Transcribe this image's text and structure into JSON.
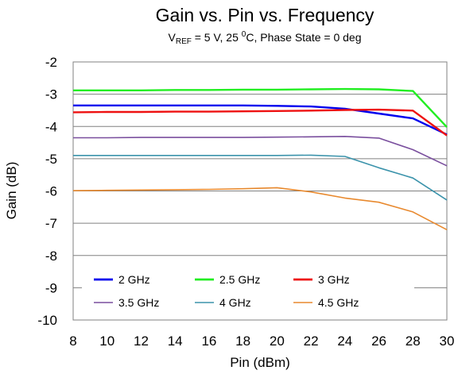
{
  "chart_data": {
    "type": "line",
    "title": "Gain vs. Pin vs. Frequency",
    "subtitle": {
      "prefix": "V",
      "sub": "REF",
      "middle": " = 5 V, 25 ",
      "sup": "0",
      "suffix": "C, Phase State = 0 deg"
    },
    "xlabel": "Pin (dBm)",
    "ylabel": "Gain (dB)",
    "xlim": [
      8,
      30
    ],
    "ylim": [
      -10,
      -2
    ],
    "xticks": [
      "8",
      "10",
      "12",
      "14",
      "16",
      "18",
      "20",
      "22",
      "24",
      "26",
      "28",
      "30"
    ],
    "yticks": [
      "-2",
      "-3",
      "-4",
      "-5",
      "-6",
      "-7",
      "-8",
      "-9",
      "-10"
    ],
    "grid": "horizontal",
    "legend_position": "bottom-inside",
    "x": [
      8,
      10,
      12,
      14,
      16,
      18,
      20,
      22,
      24,
      26,
      28,
      30
    ],
    "series": [
      {
        "name": "2 GHz",
        "color": "#0000ee",
        "values": [
          -3.35,
          -3.35,
          -3.35,
          -3.35,
          -3.35,
          -3.35,
          -3.36,
          -3.38,
          -3.45,
          -3.6,
          -3.75,
          -4.25
        ]
      },
      {
        "name": "2.5 GHz",
        "color": "#22ee22",
        "values": [
          -2.88,
          -2.88,
          -2.88,
          -2.87,
          -2.87,
          -2.86,
          -2.86,
          -2.85,
          -2.84,
          -2.85,
          -2.9,
          -4.02
        ]
      },
      {
        "name": "3 GHz",
        "color": "#ee1111",
        "values": [
          -3.56,
          -3.55,
          -3.55,
          -3.54,
          -3.54,
          -3.53,
          -3.52,
          -3.51,
          -3.49,
          -3.48,
          -3.51,
          -4.28
        ]
      },
      {
        "name": "3.5 GHz",
        "color": "#7a4f9e",
        "values": [
          -4.35,
          -4.35,
          -4.34,
          -4.34,
          -4.34,
          -4.34,
          -4.33,
          -4.32,
          -4.31,
          -4.36,
          -4.72,
          -5.22
        ]
      },
      {
        "name": "4 GHz",
        "color": "#3b93ab",
        "values": [
          -4.9,
          -4.9,
          -4.9,
          -4.9,
          -4.9,
          -4.9,
          -4.9,
          -4.89,
          -4.93,
          -5.28,
          -5.6,
          -6.28
        ]
      },
      {
        "name": "4.5 GHz",
        "color": "#e8892e",
        "values": [
          -5.99,
          -5.98,
          -5.97,
          -5.96,
          -5.95,
          -5.93,
          -5.9,
          -6.03,
          -6.22,
          -6.35,
          -6.65,
          -7.2
        ]
      }
    ]
  }
}
